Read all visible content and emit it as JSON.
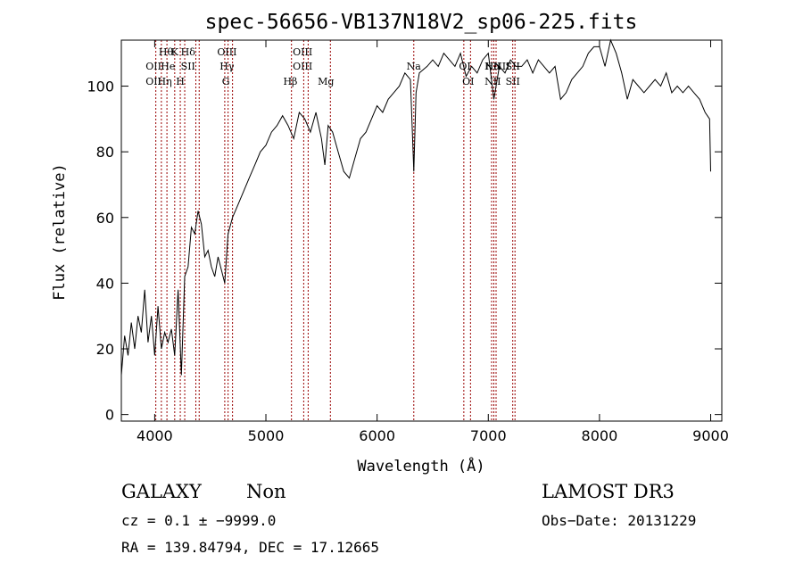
{
  "chart_data": {
    "type": "line",
    "title": "spec-56656-VB137N18V2_sp06-225.fits",
    "xlabel": "Wavelength (Å)",
    "ylabel": "Flux (relative)",
    "xlim": [
      3700,
      9100
    ],
    "ylim": [
      -2,
      114
    ],
    "xticks": [
      4000,
      5000,
      6000,
      7000,
      8000,
      9000
    ],
    "yticks": [
      0,
      20,
      40,
      60,
      80,
      100
    ],
    "grid": false,
    "line_color": "#000000",
    "marker_color": "#990000",
    "series": [
      {
        "x": [
          3700,
          3730,
          3760,
          3790,
          3820,
          3850,
          3880,
          3910,
          3940,
          3970,
          4000,
          4030,
          4060,
          4090,
          4120,
          4150,
          4180,
          4210,
          4240,
          4270,
          4300,
          4330,
          4360,
          4390,
          4420,
          4450,
          4480,
          4510,
          4540,
          4570,
          4600,
          4630,
          4660,
          4700,
          4750,
          4800,
          4850,
          4900,
          4950,
          5000,
          5050,
          5100,
          5150,
          5200,
          5250,
          5300,
          5350,
          5400,
          5450,
          5500,
          5530,
          5560,
          5600,
          5650,
          5700,
          5750,
          5800,
          5850,
          5900,
          5950,
          6000,
          6050,
          6100,
          6150,
          6200,
          6250,
          6300,
          6330,
          6350,
          6380,
          6450,
          6500,
          6550,
          6600,
          6650,
          6700,
          6750,
          6800,
          6850,
          6900,
          6950,
          7000,
          7050,
          7100,
          7150,
          7200,
          7250,
          7300,
          7350,
          7400,
          7450,
          7500,
          7550,
          7600,
          7650,
          7700,
          7750,
          7800,
          7850,
          7900,
          7950,
          8000,
          8050,
          8100,
          8150,
          8200,
          8250,
          8300,
          8350,
          8400,
          8450,
          8500,
          8550,
          8600,
          8650,
          8700,
          8750,
          8800,
          8850,
          8900,
          8950,
          8990,
          9000
        ],
        "values": [
          12,
          24,
          18,
          28,
          20,
          30,
          25,
          38,
          22,
          30,
          18,
          33,
          20,
          25,
          22,
          26,
          18,
          38,
          12,
          42,
          45,
          57,
          55,
          62,
          58,
          48,
          50,
          45,
          42,
          48,
          44,
          40,
          55,
          60,
          64,
          68,
          72,
          76,
          80,
          82,
          86,
          88,
          91,
          88,
          84,
          92,
          90,
          86,
          92,
          84,
          76,
          88,
          86,
          80,
          74,
          72,
          78,
          84,
          86,
          90,
          94,
          92,
          96,
          98,
          100,
          104,
          102,
          74,
          98,
          104,
          106,
          108,
          106,
          110,
          108,
          106,
          110,
          103,
          106,
          104,
          108,
          110,
          96,
          106,
          104,
          108,
          106,
          106,
          108,
          104,
          108,
          106,
          104,
          106,
          96,
          98,
          102,
          104,
          106,
          110,
          112,
          112,
          106,
          114,
          110,
          104,
          96,
          102,
          100,
          98,
          100,
          102,
          100,
          104,
          98,
          100,
          98,
          100,
          98,
          96,
          92,
          90,
          74
        ]
      }
    ],
    "line_markers": {
      "top": [
        {
          "label": "Hθ",
          "x": 4101
        },
        {
          "label": "K",
          "x": 4180
        },
        {
          "label": "Hδ",
          "x": 4300
        },
        {
          "label": "OIII",
          "x": 4650
        },
        {
          "label": "OIII",
          "x": 5330
        }
      ],
      "middle": [
        {
          "label": "OII",
          "x": 3990
        },
        {
          "label": "He",
          "x": 4120
        },
        {
          "label": "SII",
          "x": 4300
        },
        {
          "label": "Hγ",
          "x": 4650
        },
        {
          "label": "OIII",
          "x": 5330
        },
        {
          "label": "Na",
          "x": 6330
        },
        {
          "label": "OI",
          "x": 6790
        },
        {
          "label": "Hα",
          "x": 7040
        },
        {
          "label": "SII",
          "x": 7220
        },
        {
          "label": "NII",
          "x": 7040
        },
        {
          "label": "NII",
          "x": 7120
        }
      ],
      "bottom": [
        {
          "label": "OII",
          "x": 3990
        },
        {
          "label": "Hη",
          "x": 4090
        },
        {
          "label": "H",
          "x": 4230
        },
        {
          "label": "G",
          "x": 4640
        },
        {
          "label": "Hβ",
          "x": 5220
        },
        {
          "label": "Mg",
          "x": 5540
        },
        {
          "label": "OI",
          "x": 6820
        },
        {
          "label": "NII",
          "x": 7040
        },
        {
          "label": "SII",
          "x": 7220
        }
      ],
      "dotted_x": [
        4010,
        4060,
        4110,
        4180,
        4230,
        4270,
        4370,
        4400,
        4630,
        4660,
        4700,
        5230,
        5340,
        5380,
        5580,
        6330,
        6780,
        6840,
        7030,
        7050,
        7070,
        7220,
        7240
      ]
    }
  },
  "footer": {
    "object_type": "GALAXY",
    "subclass": "Non",
    "survey": "LAMOST DR3",
    "cz_line": "cz = 0.1 ± −9999.0",
    "obs_date": "Obs−Date: 20131229",
    "coords": "RA = 139.84794, DEC =  17.12665"
  }
}
